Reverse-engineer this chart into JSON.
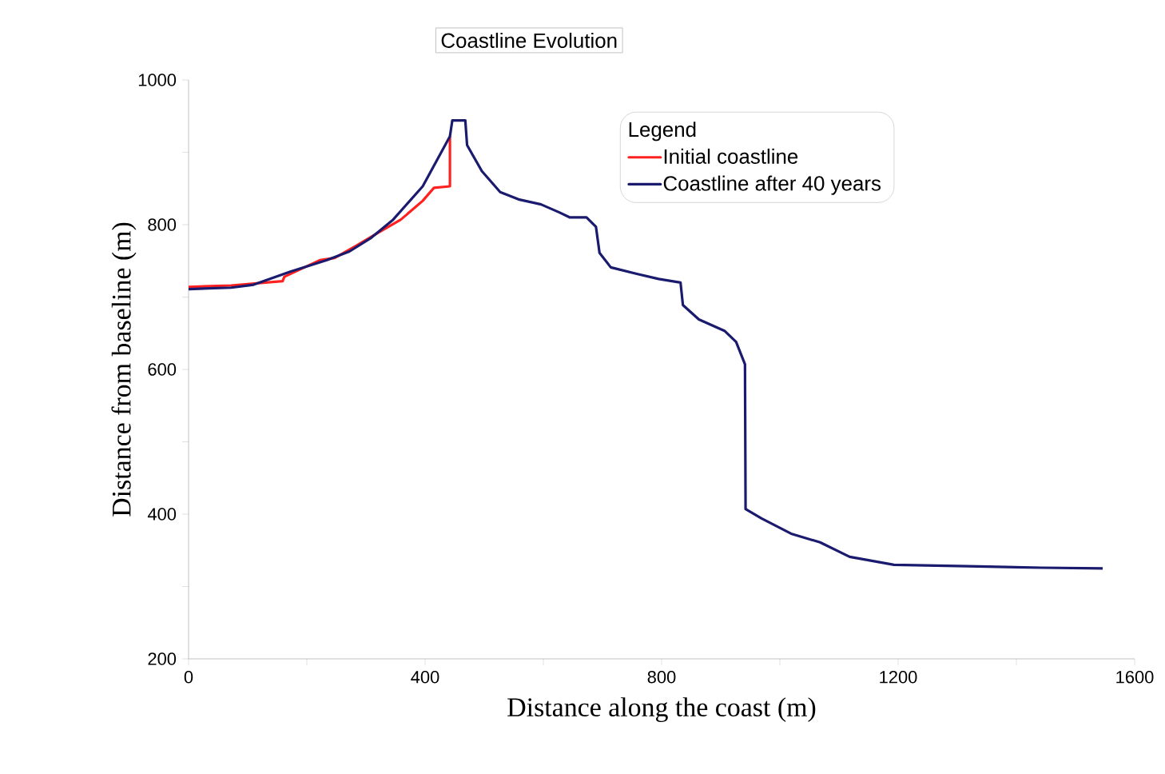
{
  "chart_data": {
    "type": "line",
    "title": "Coastline Evolution",
    "xlabel": "Distance along the coast (m)",
    "ylabel": "Distance from baseline (m)",
    "legend_title": "Legend",
    "legend": "top right",
    "grid": false,
    "marker": "none",
    "line_style": "solid",
    "xlim": [
      0,
      1600
    ],
    "ylim": [
      200,
      1000
    ],
    "xticks": [
      0,
      {
        "value": 200,
        "label": null
      },
      400,
      {
        "value": 600,
        "label": null
      },
      800,
      {
        "value": 1000,
        "label": null
      },
      1200,
      {
        "value": 1400,
        "label": null
      },
      1600
    ],
    "yticks": [
      200,
      {
        "value": 300,
        "label": null
      },
      400,
      {
        "value": 500,
        "label": null
      },
      600,
      {
        "value": 700,
        "label": null
      },
      800,
      {
        "value": 900,
        "label": null
      },
      1000
    ],
    "series": [
      {
        "name": "Initial coastline",
        "color": "#ff2020",
        "x": [
          0,
          72,
          159,
          162,
          222,
          247,
          284,
          321,
          359,
          396,
          415,
          442,
          442
        ],
        "values": [
          714,
          716,
          722,
          728,
          751,
          754,
          771,
          789,
          807,
          833,
          851,
          853,
          922
        ]
      },
      {
        "name": "Coastline after 40 years",
        "color": "#1a1a6e",
        "x": [
          0,
          72,
          110,
          172,
          234,
          272,
          309,
          346,
          396,
          442,
          446,
          468,
          471,
          496,
          527,
          558,
          596,
          627,
          645,
          673,
          689,
          695,
          714,
          758,
          795,
          832,
          836,
          863,
          907,
          926,
          941,
          942,
          969,
          1019,
          1068,
          1118,
          1193,
          1318,
          1443,
          1546
        ],
        "values": [
          711,
          713,
          717,
          735,
          751,
          763,
          782,
          807,
          853,
          922,
          944,
          944,
          910,
          874,
          845,
          835,
          828,
          817,
          810,
          810,
          797,
          761,
          741,
          732,
          725,
          720,
          689,
          669,
          653,
          638,
          607,
          407,
          394,
          373,
          361,
          341,
          330,
          328,
          326,
          325
        ]
      }
    ]
  }
}
